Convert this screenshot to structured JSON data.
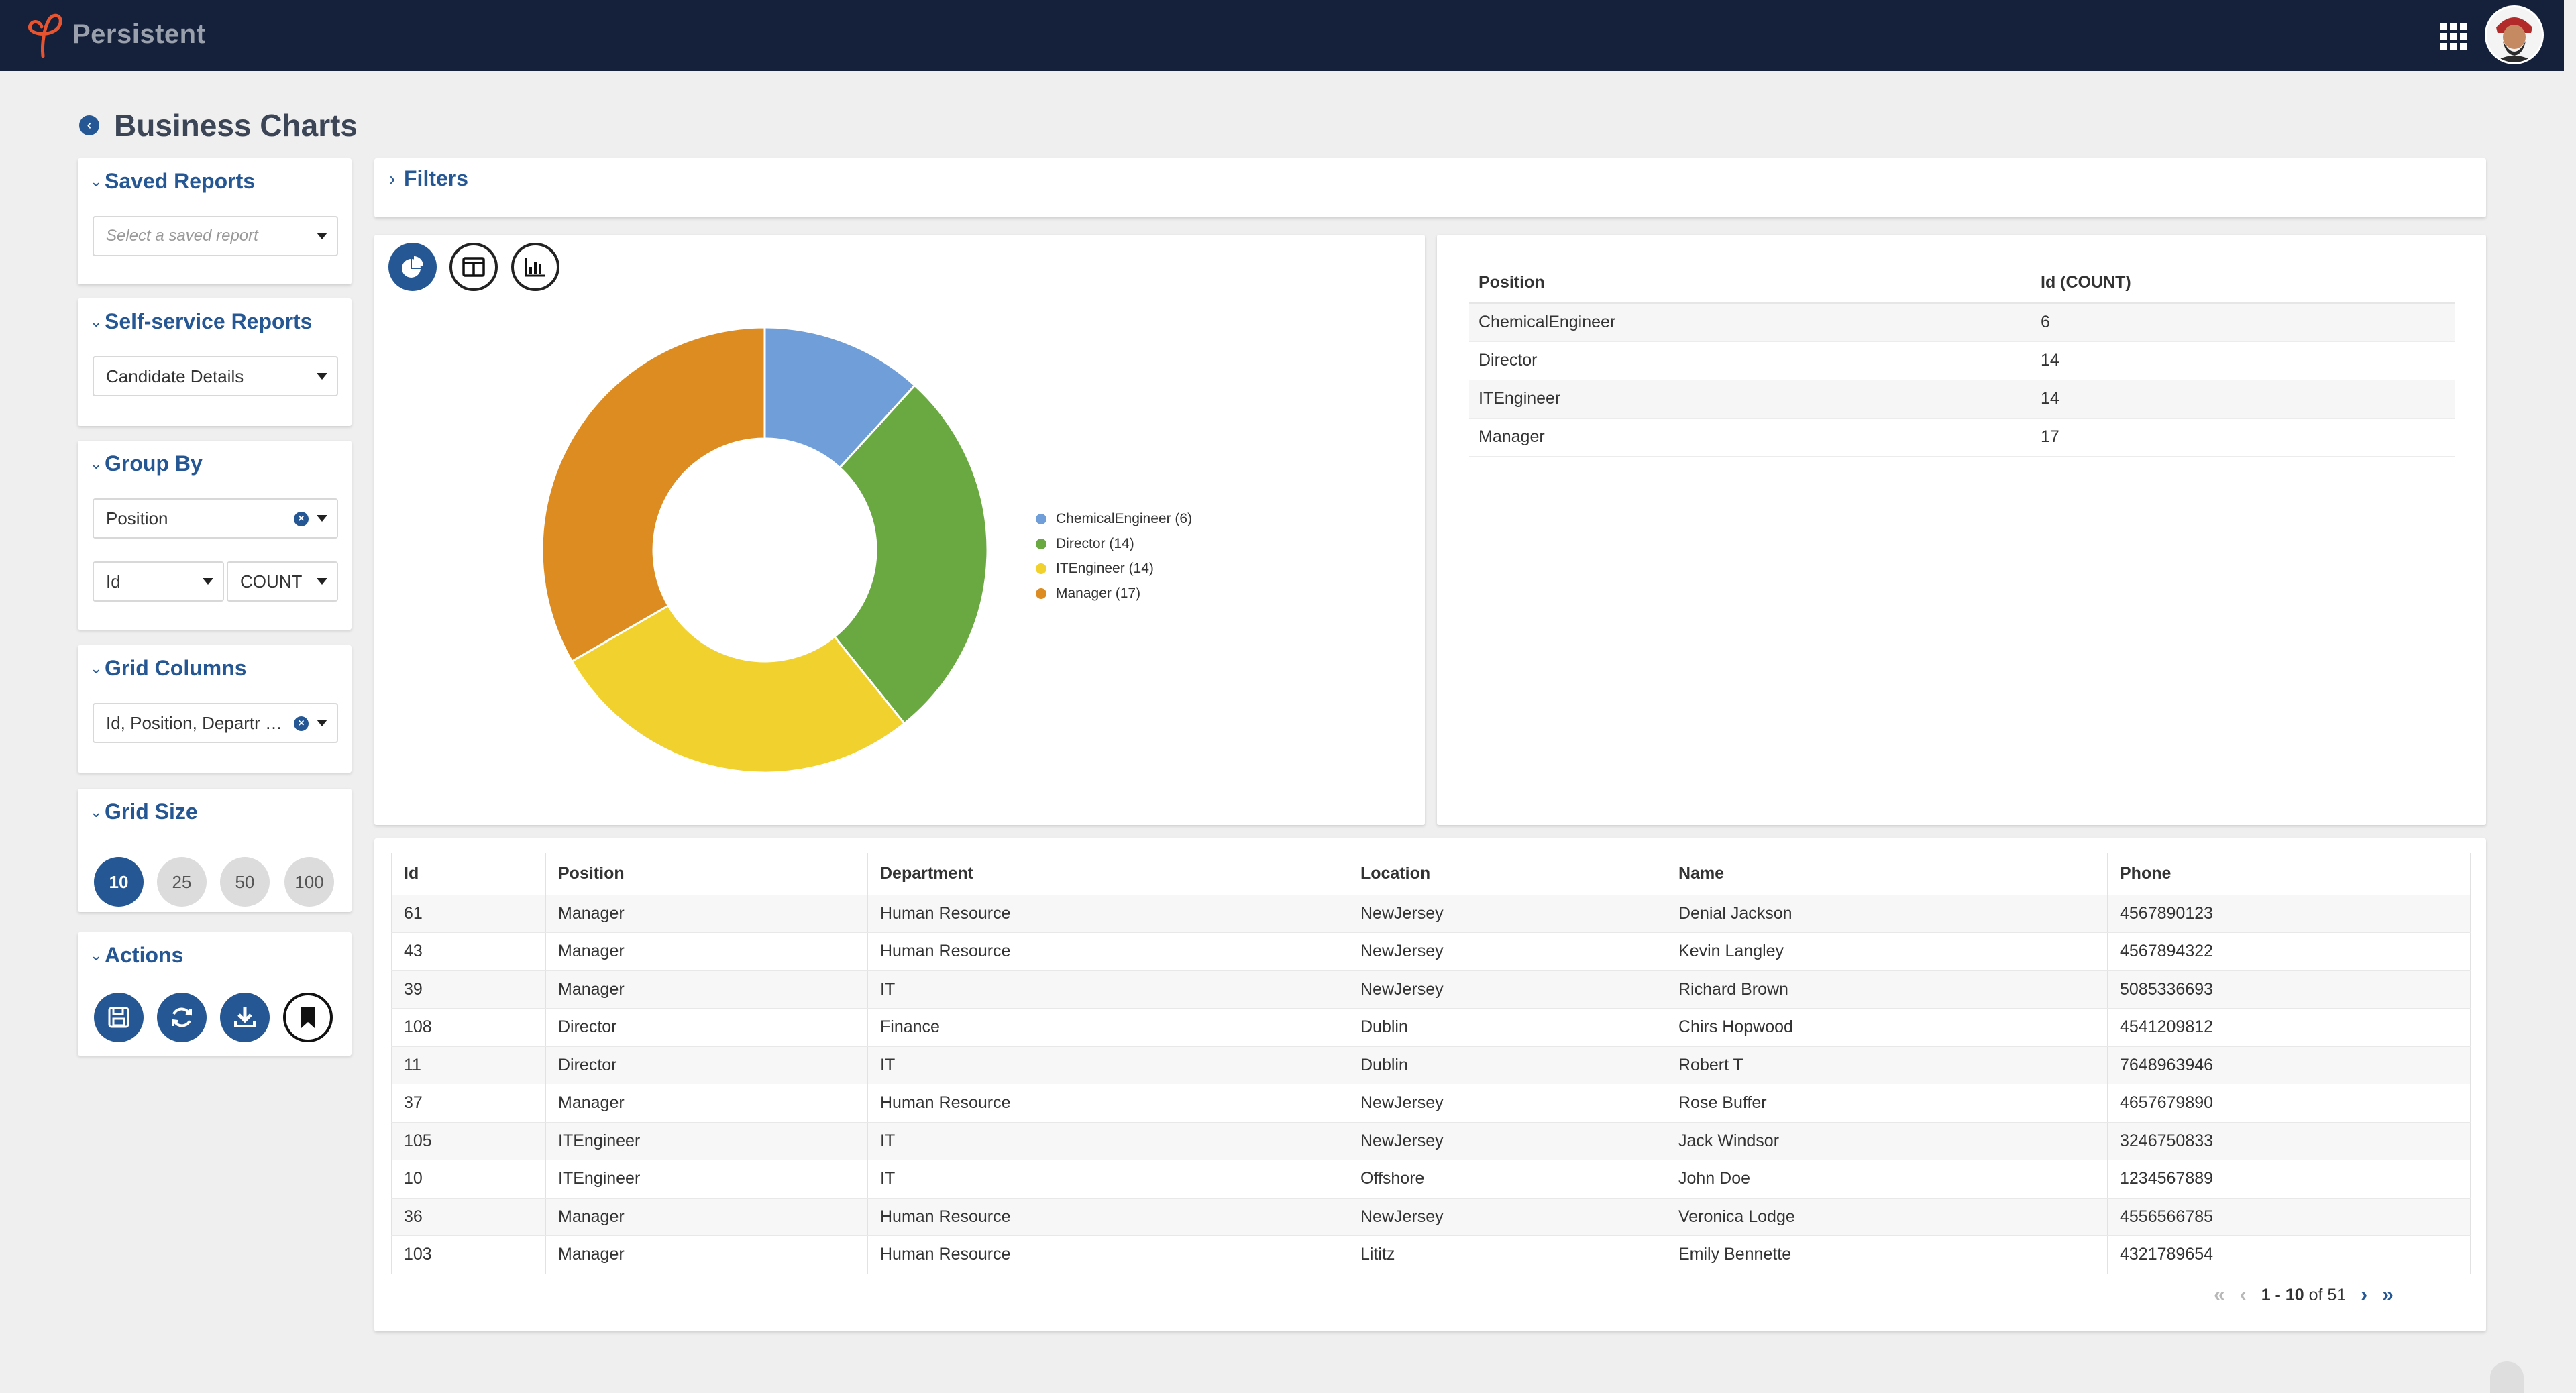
{
  "brand": {
    "name": "Persistent"
  },
  "header": {
    "apps_icon": "grid-apps-icon",
    "avatar": "user-avatar"
  },
  "page": {
    "title": "Business Charts"
  },
  "sidebar": {
    "saved_reports": {
      "title": "Saved Reports",
      "placeholder": "Select a saved report"
    },
    "self_service": {
      "title": "Self-service Reports",
      "value": "Candidate Details"
    },
    "group_by": {
      "title": "Group By",
      "field": "Position",
      "measure_field": "Id",
      "aggregate": "COUNT"
    },
    "grid_columns": {
      "title": "Grid Columns",
      "value": "Id, Position, Departr …"
    },
    "grid_size": {
      "title": "Grid Size",
      "options": [
        "10",
        "25",
        "50",
        "100"
      ],
      "selected": "10"
    },
    "actions": {
      "title": "Actions",
      "items": [
        "save-icon",
        "refresh-icon",
        "download-icon",
        "bookmark-icon"
      ]
    }
  },
  "filters": {
    "title": "Filters"
  },
  "chart_view_buttons": [
    "pie-chart-icon",
    "table-view-icon",
    "bar-chart-icon"
  ],
  "colors": {
    "accent": "#245794",
    "topbar": "#15203a"
  },
  "chart_data": {
    "type": "pie",
    "style": "donut",
    "categories": [
      "ChemicalEngineer",
      "Director",
      "ITEngineer",
      "Manager"
    ],
    "values": [
      6,
      14,
      14,
      17
    ],
    "colors": [
      "#6f9ed8",
      "#6aa842",
      "#f0d12d",
      "#dd8c21"
    ],
    "legend": [
      "ChemicalEngineer (6)",
      "Director (14)",
      "ITEngineer (14)",
      "Manager (17)"
    ],
    "legend_position": "right"
  },
  "summary": {
    "headers": [
      "Position",
      "Id (COUNT)"
    ],
    "rows": [
      [
        "ChemicalEngineer",
        "6"
      ],
      [
        "Director",
        "14"
      ],
      [
        "ITEngineer",
        "14"
      ],
      [
        "Manager",
        "17"
      ]
    ]
  },
  "grid": {
    "headers": [
      "Id",
      "Position",
      "Department",
      "Location",
      "Name",
      "Phone"
    ],
    "rows": [
      [
        "61",
        "Manager",
        "Human Resource",
        "NewJersey",
        "Denial Jackson",
        "4567890123"
      ],
      [
        "43",
        "Manager",
        "Human Resource",
        "NewJersey",
        "Kevin Langley",
        "4567894322"
      ],
      [
        "39",
        "Manager",
        "IT",
        "NewJersey",
        "Richard Brown",
        "5085336693"
      ],
      [
        "108",
        "Director",
        "Finance",
        "Dublin",
        "Chirs Hopwood",
        "4541209812"
      ],
      [
        "11",
        "Director",
        "IT",
        "Dublin",
        "Robert T",
        "7648963946"
      ],
      [
        "37",
        "Manager",
        "Human Resource",
        "NewJersey",
        "Rose Buffer",
        "4657679890"
      ],
      [
        "105",
        "ITEngineer",
        "IT",
        "NewJersey",
        "Jack Windsor",
        "3246750833"
      ],
      [
        "10",
        "ITEngineer",
        "IT",
        "Offshore",
        "John Doe",
        "1234567889"
      ],
      [
        "36",
        "Manager",
        "Human Resource",
        "NewJersey",
        "Veronica Lodge",
        "4556566785"
      ],
      [
        "103",
        "Manager",
        "Human Resource",
        "Lititz",
        "Emily  Bennette",
        "4321789654"
      ]
    ]
  },
  "pager": {
    "range": "1 - 10",
    "of_text": "of 51"
  }
}
